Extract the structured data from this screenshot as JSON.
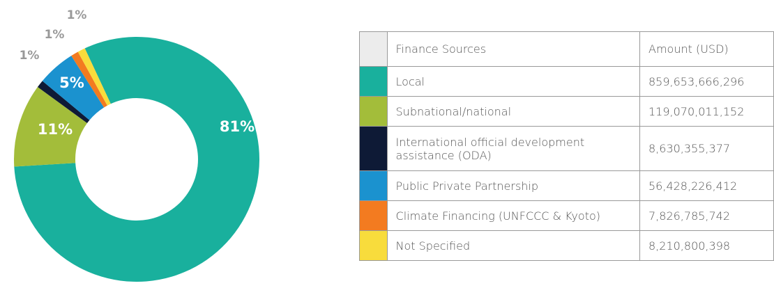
{
  "chart_data": {
    "type": "donut",
    "categories": [
      "Local",
      "Subnational/national",
      "International official development assistance (ODA)",
      "Public Private Partnership",
      "Climate Financing (UNFCCC & Kyoto)",
      "Not Specified"
    ],
    "values": [
      81,
      11,
      1,
      5,
      1,
      1
    ],
    "value_labels": [
      "81%",
      "11%",
      "1%",
      "5%",
      "1%",
      "1%"
    ],
    "colors": [
      "#19b09d",
      "#a3bd3a",
      "#0e1a36",
      "#1b92cf",
      "#f37b20",
      "#f8dc3c"
    ]
  },
  "table": {
    "columns": [
      "Finance Sources",
      "Amount (USD)"
    ],
    "amounts": [
      "859,653,666,296",
      "119,070,011,152",
      "8,630,355,377",
      "56,428,226,412",
      "7,826,785,742",
      "8,210,800,398"
    ]
  }
}
